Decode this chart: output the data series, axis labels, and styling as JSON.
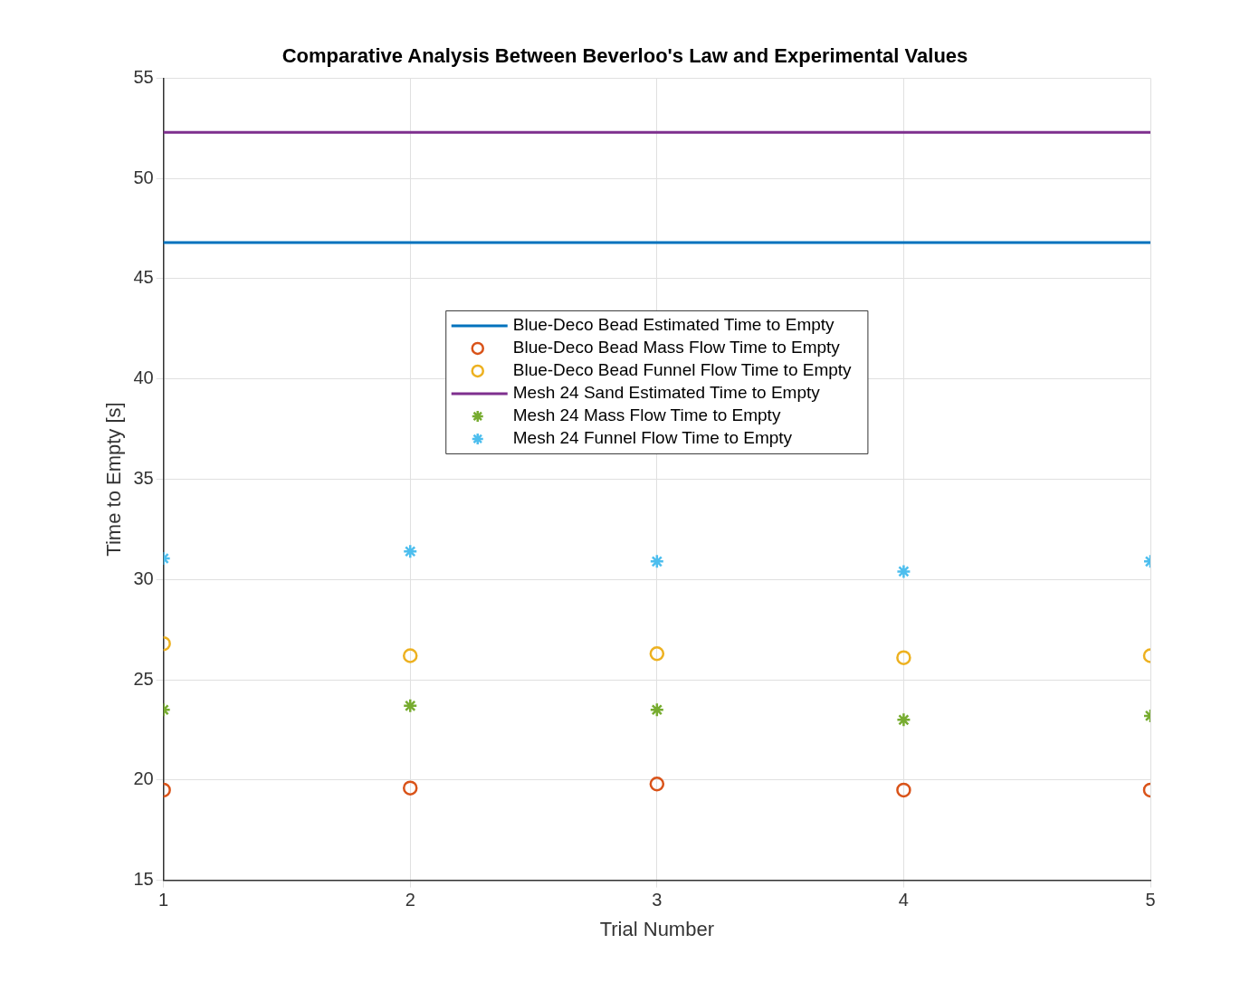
{
  "chart_data": {
    "type": "scatter",
    "title": "Comparative Analysis Between Beverloo's Law and Experimental Values",
    "xlabel": "Trial Number",
    "ylabel": "Time to Empty [s]",
    "x": [
      1,
      2,
      3,
      4,
      5
    ],
    "series": [
      {
        "name": "Blue-Deco Bead Estimated Time to Empty",
        "type": "line",
        "color": "#0072bd",
        "values": [
          46.8,
          46.8,
          46.8,
          46.8,
          46.8
        ],
        "marker": "none"
      },
      {
        "name": "Blue-Deco Bead Mass Flow Time to Empty",
        "type": "scatter",
        "color": "#d95319",
        "values": [
          19.5,
          19.6,
          19.8,
          19.5,
          19.5
        ],
        "marker": "circle"
      },
      {
        "name": "Blue-Deco Bead Funnel Flow Time to Empty",
        "type": "scatter",
        "color": "#edb120",
        "values": [
          26.8,
          26.2,
          26.3,
          26.1,
          26.2
        ],
        "marker": "circle"
      },
      {
        "name": "Mesh 24 Sand Estimated Time to Empty",
        "type": "line",
        "color": "#7e2f8e",
        "values": [
          52.3,
          52.3,
          52.3,
          52.3,
          52.3
        ],
        "marker": "none"
      },
      {
        "name": "Mesh 24 Mass Flow Time to Empty",
        "type": "scatter",
        "color": "#77ac30",
        "values": [
          23.5,
          23.7,
          23.5,
          23.0,
          23.2
        ],
        "marker": "cross"
      },
      {
        "name": "Mesh 24 Funnel Flow Time to Empty",
        "type": "scatter",
        "color": "#4dbeee",
        "values": [
          31.05,
          31.4,
          30.9,
          30.4,
          30.9
        ],
        "marker": "cross"
      }
    ],
    "xlim": [
      1,
      5
    ],
    "xticks": [
      1,
      2,
      3,
      4,
      5
    ],
    "ylim": [
      15,
      55
    ],
    "yticks": [
      15,
      20,
      25,
      30,
      35,
      40,
      45,
      50,
      55
    ],
    "grid": true,
    "legend": "top"
  }
}
